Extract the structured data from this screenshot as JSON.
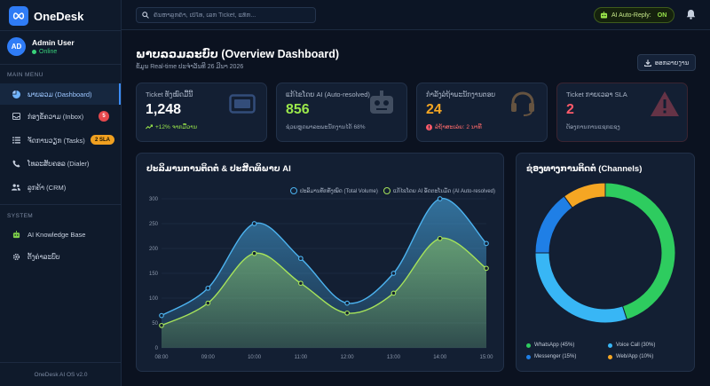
{
  "app": {
    "name": "OneDesk",
    "version": "OneDesk AI OS v2.0"
  },
  "user": {
    "initials": "AD",
    "name": "Admin User",
    "status": "Online"
  },
  "sidebar": {
    "main_menu_label": "MAIN MENU",
    "system_label": "SYSTEM",
    "main_items": [
      {
        "label": "ພາບລວມ (Dashboard)",
        "icon": "pie-icon",
        "active": true
      },
      {
        "label": "ກ່ອງຂໍ້ຄວາມ (Inbox)",
        "icon": "inbox-icon",
        "badge": "5"
      },
      {
        "label": "ຈັດການວຽກ (Tasks)",
        "icon": "list-icon",
        "badge": "2 SLA"
      },
      {
        "label": "ໂທລະສັບຄອລ (Dialer)",
        "icon": "phone-icon"
      },
      {
        "label": "ລູກຄ້າ (CRM)",
        "icon": "users-icon"
      }
    ],
    "system_items": [
      {
        "label": "AI Knowledge Base",
        "icon": "robot-icon"
      },
      {
        "label": "ຕັ້ງຄ່າລະບົບ",
        "icon": "gear-icon"
      }
    ]
  },
  "topbar": {
    "search_placeholder": "ຄົ້ນຫາລູກຄ້າ, ເບີໂທ, ເລກ Ticket, ແທັກ...",
    "autoreply_label": "AI Auto-Reply:",
    "autoreply_state": "ON"
  },
  "header": {
    "title": "ພາບລວມລະບົບ (Overview Dashboard)",
    "subtitle": "ຂໍ້ມູນ Real-time ປະຈຳວັນທີ 26 ມີນາ 2026",
    "export_label": "ອອກລາຍງານ"
  },
  "colors": {
    "accent": "#2f7cf6",
    "green": "#9be84b",
    "amber": "#f5a623",
    "red": "#ff5a6a"
  },
  "cards": [
    {
      "label": "Ticket ທັງໝົດມື້ນີ້",
      "value": "1,248",
      "foot": "+12% ຈາກມື້ວານ",
      "value_color": "#ffffff",
      "foot_color": "#9be84b",
      "icon": "inbox-icon",
      "foot_icon": "trend-up-icon"
    },
    {
      "label": "ແກ້ໄຂໂດຍ AI (Auto-resolved)",
      "value": "856",
      "foot": "ຊ່ວຍຫຼຸດພາລະພະນັກງານໄດ້ 68%",
      "value_color": "#9be84b",
      "foot_color": "#98a4b8",
      "icon": "robot-icon"
    },
    {
      "label": "ກຳລັງລໍຖ້າພະນັກງານຕອບ",
      "value": "24",
      "foot": "ລໍຖ້າສະເລ່ຍ: 2 ນາທີ",
      "value_color": "#f5a623",
      "foot_color": "#ff6b6b",
      "icon": "headset-icon",
      "foot_icon": "alert-icon"
    },
    {
      "label": "Ticket ກາຍເວລາ SLA",
      "value": "2",
      "foot": "ຕ້ອງການການແຊກແຊງ",
      "value_color": "#ff5a6a",
      "foot_color": "#98a4b8",
      "icon": "warning-icon"
    }
  ],
  "volume_chart": {
    "title": "ປະລິມານການຕິດຕໍ່ & ປະສິດທິພາບ AI",
    "legend_total": "ປະລິມານທັກທັງໝົດ (Total Volume)",
    "legend_ai": "ແກ້ໄຂໂດຍ AI ອັດຕະໂນມັດ (AI Auto-resolved)"
  },
  "chart_data": [
    {
      "type": "area",
      "x": [
        "08:00",
        "09:00",
        "10:00",
        "11:00",
        "12:00",
        "13:00",
        "14:00",
        "15:00"
      ],
      "series": [
        {
          "name": "ປະລິມານທັກທັງໝົດ (Total Volume)",
          "values": [
            65,
            120,
            250,
            180,
            90,
            150,
            300,
            210
          ],
          "color": "#4cb3f0"
        },
        {
          "name": "ແກ້ໄຂໂດຍ AI ອັດຕະໂນມັດ (AI Auto-resolved)",
          "values": [
            45,
            90,
            190,
            130,
            70,
            110,
            220,
            160
          ],
          "color": "#a6e35a"
        }
      ],
      "ylim": [
        0,
        300
      ],
      "yticks": [
        0,
        50,
        100,
        150,
        200,
        250,
        300
      ],
      "grid": true,
      "legend": "top-right"
    },
    {
      "type": "pie",
      "title": "ຊ່ອງທາງການຕິດຕໍ່ (Channels)",
      "slices": [
        {
          "label": "WhatsApp (45%)",
          "value": 45,
          "color": "#2ecc5f"
        },
        {
          "label": "Voice Call (30%)",
          "value": 30,
          "color": "#38b6f5"
        },
        {
          "label": "Messenger (15%)",
          "value": 15,
          "color": "#1f7fe6"
        },
        {
          "label": "Web/App (10%)",
          "value": 10,
          "color": "#f5a623"
        }
      ],
      "legend": "bottom"
    }
  ]
}
